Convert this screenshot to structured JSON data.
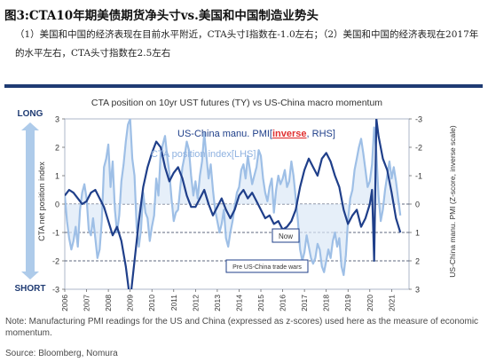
{
  "figure": {
    "title": "图3:CTA10年期美债期货净头寸vs.美国和中国制造业势头",
    "description": "（1）美国和中国的经济表现在目前水平附近，CTA头寸I指数在-1.0左右；（2）美国和中国的经济表现在2017年的水平左右，CTA头寸指数在2.5左右",
    "note": "Note: Manufacturing PMI readings for the US and China (expressed as z-scores) used here as the measure of economic momentum.",
    "source": "Source: Bloomberg, Nomura"
  },
  "chart_data": {
    "type": "line",
    "title": "CTA position on 10yr UST futures (TY) vs US-China macro momentum",
    "ylabel_left": "CTA net position index",
    "ylabel_right": "US-China manu. PMI (Z-score, inverse scale)",
    "ylim_left": [
      -3,
      3
    ],
    "ylim_right": [
      3,
      -3
    ],
    "left_ticks": [
      "-3",
      "-2",
      "-1",
      "0",
      "1",
      "2",
      "3"
    ],
    "right_ticks": [
      "-3",
      "-2",
      "-1",
      "0",
      "1",
      "2",
      "3"
    ],
    "xlim": [
      2006,
      2021.8
    ],
    "x_ticks": [
      "2006",
      "2007",
      "2008",
      "2009",
      "2010",
      "2011",
      "2012",
      "2013",
      "2014",
      "2015",
      "2016",
      "2017",
      "2018",
      "2019",
      "2020",
      "2021"
    ],
    "long_label": "LONG",
    "short_label": "SHORT",
    "grid": false,
    "reference_lines_right": [
      0,
      1,
      2
    ],
    "annotations": {
      "now": "Now",
      "trade_war": "Pre US-China trade wars"
    },
    "colors": {
      "cta": "#9ebfe6",
      "pmi": "#1f3f8a",
      "arrow": "#aecbea",
      "frame": "#1f3b73",
      "inverse": "#e03030"
    },
    "series": [
      {
        "name": "CTA position index[LHS]",
        "axis": "left",
        "x": [
          2006.0,
          2006.1,
          2006.2,
          2006.3,
          2006.4,
          2006.5,
          2006.6,
          2006.7,
          2006.8,
          2006.9,
          2007.0,
          2007.1,
          2007.2,
          2007.3,
          2007.4,
          2007.5,
          2007.6,
          2007.7,
          2007.8,
          2007.9,
          2008.0,
          2008.1,
          2008.2,
          2008.3,
          2008.4,
          2008.5,
          2008.6,
          2008.7,
          2008.8,
          2008.9,
          2009.0,
          2009.1,
          2009.2,
          2009.3,
          2009.4,
          2009.5,
          2009.6,
          2009.7,
          2009.8,
          2009.9,
          2010.0,
          2010.1,
          2010.2,
          2010.3,
          2010.4,
          2010.5,
          2010.6,
          2010.7,
          2010.8,
          2010.9,
          2011.0,
          2011.1,
          2011.2,
          2011.3,
          2011.4,
          2011.5,
          2011.6,
          2011.7,
          2011.8,
          2011.9,
          2012.0,
          2012.1,
          2012.2,
          2012.3,
          2012.4,
          2012.5,
          2012.6,
          2012.7,
          2012.8,
          2012.9,
          2013.0,
          2013.1,
          2013.2,
          2013.3,
          2013.4,
          2013.5,
          2013.6,
          2013.7,
          2013.8,
          2013.9,
          2014.0,
          2014.1,
          2014.2,
          2014.3,
          2014.4,
          2014.5,
          2014.6,
          2014.7,
          2014.8,
          2014.9,
          2015.0,
          2015.1,
          2015.2,
          2015.3,
          2015.4,
          2015.5,
          2015.6,
          2015.7,
          2015.8,
          2015.9,
          2016.0,
          2016.1,
          2016.2,
          2016.3,
          2016.4,
          2016.5,
          2016.6,
          2016.7,
          2016.8,
          2016.9,
          2017.0,
          2017.1,
          2017.2,
          2017.3,
          2017.4,
          2017.5,
          2017.6,
          2017.7,
          2017.8,
          2017.9,
          2018.0,
          2018.1,
          2018.2,
          2018.3,
          2018.4,
          2018.5,
          2018.6,
          2018.7,
          2018.8,
          2018.9,
          2019.0,
          2019.1,
          2019.2,
          2019.3,
          2019.4,
          2019.5,
          2019.6,
          2019.7,
          2019.8,
          2019.9,
          2020.0,
          2020.1,
          2020.2,
          2020.3,
          2020.4,
          2020.5,
          2020.6,
          2020.7,
          2020.8,
          2020.9,
          2021.0,
          2021.1,
          2021.2,
          2021.3,
          2021.4
        ],
        "values": [
          0.3,
          -0.6,
          -1.2,
          -1.6,
          -1.3,
          -0.8,
          -1.5,
          -0.2,
          0.4,
          0.7,
          0.2,
          -0.9,
          -1.1,
          -0.5,
          -1.2,
          -1.9,
          -1.6,
          -0.6,
          1.3,
          1.6,
          2.1,
          0.6,
          1.5,
          -0.2,
          -1.0,
          -0.4,
          0.8,
          1.4,
          2.2,
          2.8,
          3.0,
          1.6,
          1.0,
          -0.8,
          -1.5,
          -0.9,
          0.4,
          -0.3,
          -0.5,
          -1.3,
          -0.8,
          -0.4,
          0.9,
          0.3,
          1.8,
          2.1,
          2.4,
          1.7,
          1.1,
          0.2,
          -0.6,
          -0.3,
          -0.2,
          0.6,
          1.3,
          1.7,
          2.2,
          1.9,
          1.0,
          0.3,
          0.8,
          0.2,
          1.0,
          1.5,
          2.5,
          1.7,
          0.9,
          1.4,
          0.5,
          -0.2,
          -0.6,
          -1.0,
          -0.7,
          -0.2,
          -1.2,
          -1.5,
          -1.0,
          -0.6,
          -0.1,
          0.4,
          0.6,
          1.2,
          1.4,
          0.9,
          1.7,
          1.2,
          0.7,
          1.0,
          1.3,
          1.9,
          1.7,
          0.9,
          0.4,
          0.1,
          0.6,
          0.9,
          -0.3,
          0.5,
          1.0,
          0.7,
          0.9,
          1.2,
          0.6,
          0.8,
          1.5,
          1.0,
          0.2,
          -0.6,
          -1.6,
          -2.0,
          -1.7,
          -1.1,
          -1.5,
          -1.9,
          -2.1,
          -1.9,
          -1.4,
          -1.6,
          -2.2,
          -2.4,
          -2.0,
          -1.6,
          -1.9,
          -1.3,
          -1.0,
          -1.5,
          -1.2,
          -2.2,
          -2.5,
          -1.8,
          -0.6,
          0.2,
          0.5,
          1.2,
          1.6,
          2.0,
          2.3,
          1.8,
          1.2,
          0.6,
          0.8,
          1.4,
          2.7,
          1.8,
          0.3,
          -0.6,
          -0.2,
          0.5,
          1.0,
          1.5,
          0.9,
          1.3,
          0.8,
          0.2,
          -0.4
        ]
      },
      {
        "name": "US-China manu. PMI[inverse, RHS]",
        "axis": "right",
        "x": [
          2006.0,
          2006.2,
          2006.4,
          2006.6,
          2006.8,
          2007.0,
          2007.2,
          2007.4,
          2007.6,
          2007.8,
          2008.0,
          2008.2,
          2008.4,
          2008.6,
          2008.8,
          2009.0,
          2009.2,
          2009.4,
          2009.6,
          2009.8,
          2010.0,
          2010.2,
          2010.4,
          2010.6,
          2010.8,
          2011.0,
          2011.2,
          2011.4,
          2011.6,
          2011.8,
          2012.0,
          2012.2,
          2012.4,
          2012.6,
          2012.8,
          2013.0,
          2013.2,
          2013.4,
          2013.6,
          2013.8,
          2014.0,
          2014.2,
          2014.4,
          2014.6,
          2014.8,
          2015.0,
          2015.2,
          2015.4,
          2015.6,
          2015.8,
          2016.0,
          2016.2,
          2016.4,
          2016.6,
          2016.8,
          2017.0,
          2017.2,
          2017.4,
          2017.6,
          2017.8,
          2018.0,
          2018.2,
          2018.4,
          2018.6,
          2018.8,
          2019.0,
          2019.2,
          2019.4,
          2019.6,
          2019.8,
          2020.0,
          2020.1,
          2020.2,
          2020.3,
          2020.4,
          2020.6,
          2020.8,
          2021.0,
          2021.2,
          2021.4
        ],
        "values": [
          -0.3,
          -0.5,
          -0.4,
          -0.2,
          0.0,
          -0.1,
          -0.4,
          -0.5,
          -0.2,
          0.1,
          0.6,
          1.1,
          0.8,
          1.3,
          2.2,
          3.4,
          2.0,
          0.6,
          -0.6,
          -1.3,
          -1.8,
          -2.2,
          -2.0,
          -1.3,
          -0.8,
          -1.1,
          -1.3,
          -0.9,
          -0.3,
          0.1,
          0.1,
          -0.2,
          -0.5,
          0.0,
          0.4,
          0.1,
          -0.2,
          0.2,
          0.5,
          0.2,
          -0.3,
          -0.5,
          -0.2,
          -0.4,
          -0.1,
          0.2,
          0.5,
          0.4,
          0.7,
          0.6,
          0.9,
          0.8,
          0.6,
          0.2,
          -0.6,
          -1.2,
          -1.6,
          -1.3,
          -1.0,
          -1.6,
          -1.8,
          -1.5,
          -1.0,
          -0.6,
          0.2,
          0.7,
          0.4,
          0.2,
          0.8,
          0.5,
          0.0,
          -0.5,
          2.0,
          -3.0,
          -2.4,
          -1.6,
          -1.2,
          -0.4,
          0.5,
          1.0
        ]
      }
    ]
  }
}
